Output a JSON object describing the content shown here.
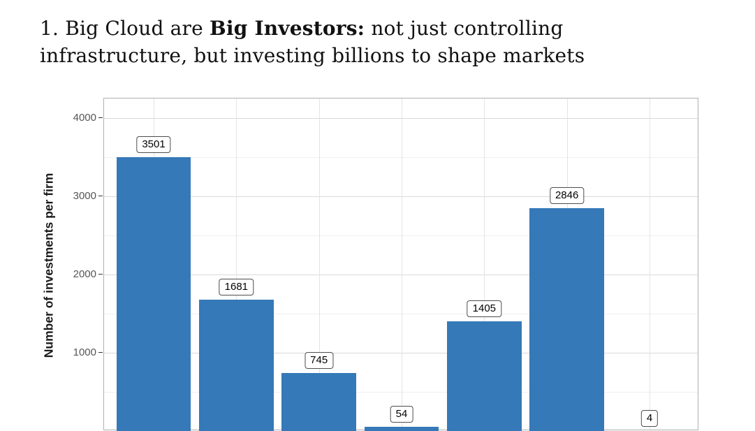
{
  "title": {
    "part1": "1. Big Cloud are ",
    "bold": "Big Investors:",
    "part2": " not just controlling infrastructure, but investing billions to shape markets"
  },
  "chart_data": {
    "type": "bar",
    "categories": [
      "",
      "",
      "",
      "",
      "",
      "",
      ""
    ],
    "values": [
      3501,
      1681,
      745,
      54,
      1405,
      2846,
      4
    ],
    "value_labels": [
      "3501",
      "1681",
      "745",
      "54",
      "1405",
      "2846",
      "4"
    ],
    "title": "",
    "xlabel": "",
    "ylabel": "Number of investments per firm",
    "yticks": [
      1000,
      2000,
      3000,
      4000
    ],
    "yticks_minor": [
      500,
      1500,
      2500,
      3500
    ],
    "ylim": [
      0,
      4250
    ],
    "bar_color": "#3579b8",
    "grid": "on",
    "legend": "none"
  }
}
